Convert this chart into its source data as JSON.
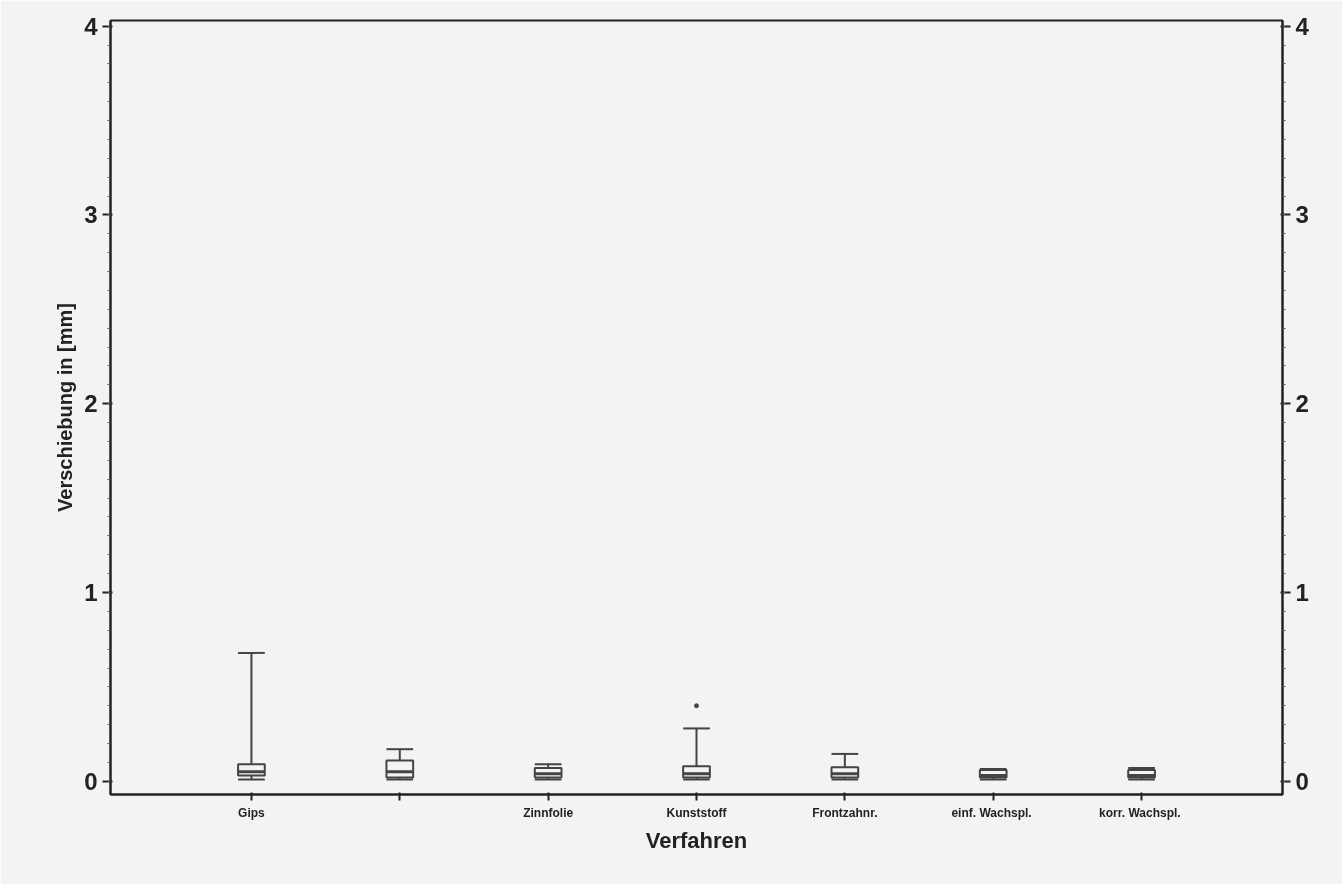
{
  "chart_data": {
    "type": "box",
    "xlabel": "Verfahren",
    "ylabel": "Verschiebung in [mm]",
    "categories": [
      "Gips",
      null,
      "Zinnfolie",
      "Kunststoff",
      "Frontzahnr.",
      "einf.  Wachspl.",
      "korr.  Wachspl."
    ],
    "boxes": [
      {
        "low": 0.01,
        "q1": 0.03,
        "median": 0.05,
        "q3": 0.09,
        "high": 0.68
      },
      {
        "low": 0.01,
        "q1": 0.02,
        "median": 0.05,
        "q3": 0.11,
        "high": 0.17
      },
      {
        "low": 0.01,
        "q1": 0.02,
        "median": 0.04,
        "q3": 0.07,
        "high": 0.09
      },
      {
        "low": 0.01,
        "q1": 0.02,
        "median": 0.04,
        "q3": 0.08,
        "high": 0.28,
        "outliers": [
          0.4
        ]
      },
      {
        "low": 0.01,
        "q1": 0.02,
        "median": 0.04,
        "q3": 0.075,
        "high": 0.145
      },
      {
        "low": 0.01,
        "q1": 0.02,
        "median": 0.03,
        "q3": 0.06,
        "high": 0.065
      },
      {
        "low": 0.01,
        "q1": 0.02,
        "median": 0.03,
        "q3": 0.06,
        "high": 0.07
      }
    ],
    "color": "#444444",
    "ylim": [
      -0.07,
      4.03
    ],
    "yticks": [
      0,
      1,
      2,
      3,
      4
    ],
    "y2lim": [
      -0.07,
      4.03
    ],
    "y2ticks": [
      0,
      1,
      2,
      3,
      4
    ],
    "grid": false
  }
}
